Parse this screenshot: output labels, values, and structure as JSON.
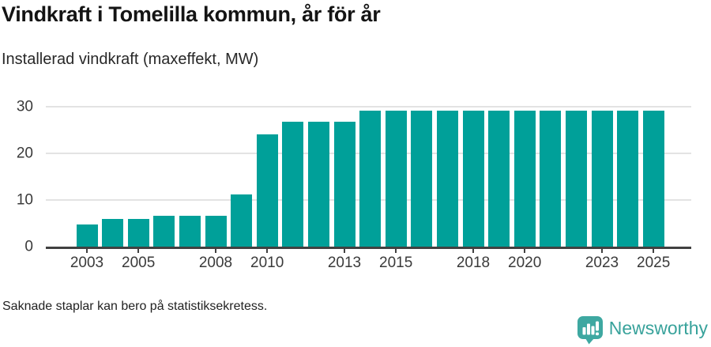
{
  "header": {
    "title": "Vindkraft i Tomelilla kommun, år för år",
    "subtitle": "Installerad vindkraft (maxeffekt, MW)"
  },
  "chart_data": {
    "type": "bar",
    "title": "Vindkraft i Tomelilla kommun, år för år",
    "subtitle": "Installerad vindkraft (maxeffekt, MW)",
    "categories": [
      2003,
      2004,
      2005,
      2006,
      2007,
      2008,
      2009,
      2010,
      2011,
      2012,
      2013,
      2014,
      2015,
      2016,
      2017,
      2018,
      2019,
      2020,
      2021,
      2022,
      2023,
      2024,
      2025
    ],
    "values": [
      4.7,
      5.9,
      5.9,
      6.6,
      6.6,
      6.6,
      11.2,
      24.1,
      26.8,
      26.8,
      26.8,
      29.2,
      29.2,
      29.2,
      29.2,
      29.2,
      29.2,
      29.2,
      29.2,
      29.2,
      29.2,
      29.2,
      29.2
    ],
    "xlabel": "",
    "ylabel": "",
    "ylim": [
      0,
      30
    ],
    "yticks": [
      0,
      10,
      20,
      30
    ],
    "xticks": [
      2003,
      2005,
      2008,
      2010,
      2013,
      2015,
      2018,
      2020,
      2023,
      2025
    ],
    "grid": "horizontal",
    "legend": "none",
    "bar_color": "#00a099"
  },
  "footer": {
    "note": "Saknade staplar kan bero på statistiksekretess.",
    "brand": "Newsworthy",
    "brand_text_color": "#38a29b",
    "brand_icon_color": "#3ea8a1"
  }
}
